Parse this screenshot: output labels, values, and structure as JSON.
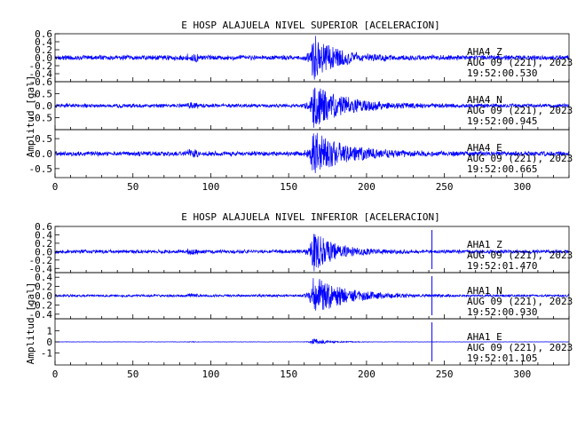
{
  "chart_data": [
    {
      "type": "line",
      "title": "E HOSP ALAJUELA NIVEL SUPERIOR [ACELERACION]",
      "ylabel": "Amplitud [gal]",
      "xlim": [
        0,
        330
      ],
      "x_ticks": [
        "0",
        "50",
        "100",
        "150",
        "200",
        "250",
        "300"
      ],
      "series_color": "#0000ff",
      "traces": [
        {
          "station": "AHA4",
          "component": "Z",
          "date": "AUG 09 (221), 2023",
          "time": "19:52:00.530",
          "ylim": [
            -0.6,
            0.6
          ],
          "y_ticks": [
            "0.6",
            "0.4",
            "0.2",
            "0.0",
            "-0.2",
            "-0.4",
            "-0.6"
          ],
          "noise": 0.07,
          "event_peak": 0.55,
          "event_onset_s": 163,
          "event_decay_s": 14,
          "spike_s": null
        },
        {
          "station": "AHA4",
          "component": "N",
          "date": "AUG 09 (221), 2023",
          "time": "19:52:00.945",
          "ylim": [
            -1.0,
            1.0
          ],
          "y_ticks": [
            "0.5",
            "0.0",
            "-0.5"
          ],
          "noise": 0.09,
          "event_peak": 0.85,
          "event_onset_s": 163,
          "event_decay_s": 20,
          "spike_s": null
        },
        {
          "station": "AHA4",
          "component": "E",
          "date": "AUG 09 (221), 2023",
          "time": "19:52:00.665",
          "ylim": [
            -0.8,
            0.8
          ],
          "y_ticks": [
            "0.5",
            "0.0",
            "-0.5"
          ],
          "noise": 0.09,
          "event_peak": 0.7,
          "event_onset_s": 163,
          "event_decay_s": 20,
          "spike_s": null
        }
      ]
    },
    {
      "type": "line",
      "title": "E HOSP ALAJUELA NIVEL INFERIOR [ACELERACION]",
      "ylabel": "Amplitud [gal]",
      "xlim": [
        0,
        330
      ],
      "x_ticks": [
        "0",
        "50",
        "100",
        "150",
        "200",
        "250",
        "300"
      ],
      "series_color": "#0000ff",
      "traces": [
        {
          "station": "AHA1",
          "component": "Z",
          "date": "AUG 09 (221), 2023",
          "time": "19:52:01.470",
          "ylim": [
            -0.5,
            0.6
          ],
          "y_ticks": [
            "0.6",
            "0.4",
            "0.2",
            "0.0",
            "-0.2",
            "-0.4"
          ],
          "noise": 0.05,
          "event_peak": 0.45,
          "event_onset_s": 163,
          "event_decay_s": 14,
          "spike_s": 242
        },
        {
          "station": "AHA1",
          "component": "N",
          "date": "AUG 09 (221), 2023",
          "time": "19:52:00.930",
          "ylim": [
            -0.5,
            0.5
          ],
          "y_ticks": [
            "0.4",
            "0.2",
            "0.0",
            "-0.2",
            "-0.4"
          ],
          "noise": 0.03,
          "event_peak": 0.48,
          "event_onset_s": 163,
          "event_decay_s": 18,
          "spike_s": 242
        },
        {
          "station": "AHA1",
          "component": "E",
          "date": "AUG 09 (221), 2023",
          "time": "19:52:01.105",
          "ylim": [
            -2.1,
            2.1
          ],
          "y_ticks": [
            "1",
            "0",
            "-1"
          ],
          "noise": 0.02,
          "event_peak": 0.3,
          "event_onset_s": 163,
          "event_decay_s": 10,
          "spike_s": 242
        }
      ]
    }
  ]
}
